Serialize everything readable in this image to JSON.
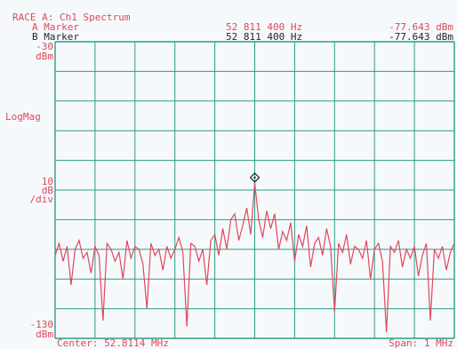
{
  "header": {
    "trace_title": "RACE A: Ch1 Spectrum",
    "a_marker": {
      "label": "A Marker",
      "freq": "52 811 400 Hz",
      "level": "-77.643 dBm"
    },
    "b_marker": {
      "label": "B Marker",
      "freq": "52 811 400 Hz",
      "level": "-77.643 dBm"
    }
  },
  "y_axis": {
    "top_value": "-30",
    "top_unit": "dBm",
    "format": "LogMag",
    "scale_value": "10",
    "scale_unit": "dB",
    "scale_per": "/div",
    "bottom_value": "-130",
    "bottom_unit": "dBm"
  },
  "footer": {
    "center": "Center: 52.8114 MHz",
    "span": "Span: 1 MHz"
  },
  "colors": {
    "trace": "#e0475a",
    "grid": "#2e9c88",
    "text_red": "#e0475a",
    "text_black": "#20262c"
  },
  "chart_data": {
    "type": "line",
    "title": "RACE A: Ch1 Spectrum",
    "xlabel": "",
    "ylabel": "LogMag",
    "x_unit": "MHz",
    "xlim": [
      52.3114,
      53.3114
    ],
    "ylim": [
      -130,
      -30
    ],
    "grid": true,
    "marker": {
      "x": 52.8114,
      "y": -77.6
    },
    "series": [
      {
        "x": [
          52.3114,
          52.3214,
          52.3314,
          52.3414,
          52.3514,
          52.3614,
          52.3714,
          52.3814,
          52.3914,
          52.4014,
          52.4114,
          52.4214,
          52.4314,
          52.4414,
          52.4514,
          52.4614,
          52.4714,
          52.4814,
          52.4914,
          52.5014,
          52.5114,
          52.5214,
          52.5314,
          52.5414,
          52.5514,
          52.5614,
          52.5714,
          52.5814,
          52.5914,
          52.6014,
          52.6114,
          52.6214,
          52.6314,
          52.6414,
          52.6514,
          52.6614,
          52.6714,
          52.6814,
          52.6914,
          52.7014,
          52.7114,
          52.7214,
          52.7314,
          52.7414,
          52.7514,
          52.7614,
          52.7714,
          52.7814,
          52.7914,
          52.8014,
          52.8114,
          52.8214,
          52.8314,
          52.8414,
          52.8514,
          52.8614,
          52.8714,
          52.8814,
          52.8914,
          52.9014,
          52.9114,
          52.9214,
          52.9314,
          52.9414,
          52.9514,
          52.9614,
          52.9714,
          52.9814,
          52.9914,
          53.0014,
          53.0114,
          53.0214,
          53.0314,
          53.0414,
          53.0514,
          53.0614,
          53.0714,
          53.0814,
          53.0914,
          53.1014,
          53.1114,
          53.1214,
          53.1314,
          53.1414,
          53.1514,
          53.1614,
          53.1714,
          53.1814,
          53.1914,
          53.2014,
          53.2114,
          53.2214,
          53.2314,
          53.2414,
          53.2514,
          53.2614,
          53.2714,
          53.2814,
          53.2914,
          53.3014,
          53.3114
        ],
        "values": [
          -102,
          -98,
          -104,
          -99,
          -112,
          -100,
          -97,
          -103,
          -101,
          -108,
          -99,
          -102,
          -124,
          -98,
          -100,
          -104,
          -101,
          -110,
          -97,
          -103,
          -99,
          -100,
          -105,
          -120,
          -98,
          -102,
          -100,
          -107,
          -99,
          -103,
          -100,
          -96,
          -101,
          -126,
          -98,
          -99,
          -104,
          -100,
          -112,
          -97,
          -95,
          -102,
          -93,
          -100,
          -90,
          -88,
          -97,
          -92,
          -86,
          -95,
          -77.6,
          -90,
          -96,
          -87,
          -93,
          -88,
          -100,
          -94,
          -97,
          -91,
          -104,
          -95,
          -99,
          -92,
          -106,
          -98,
          -96,
          -102,
          -93,
          -99,
          -121,
          -98,
          -101,
          -95,
          -105,
          -99,
          -100,
          -103,
          -97,
          -110,
          -100,
          -98,
          -104,
          -128,
          -99,
          -101,
          -97,
          -106,
          -100,
          -103,
          -99,
          -109,
          -102,
          -98,
          -124,
          -100,
          -103,
          -99,
          -107,
          -101,
          -98
        ]
      }
    ]
  }
}
